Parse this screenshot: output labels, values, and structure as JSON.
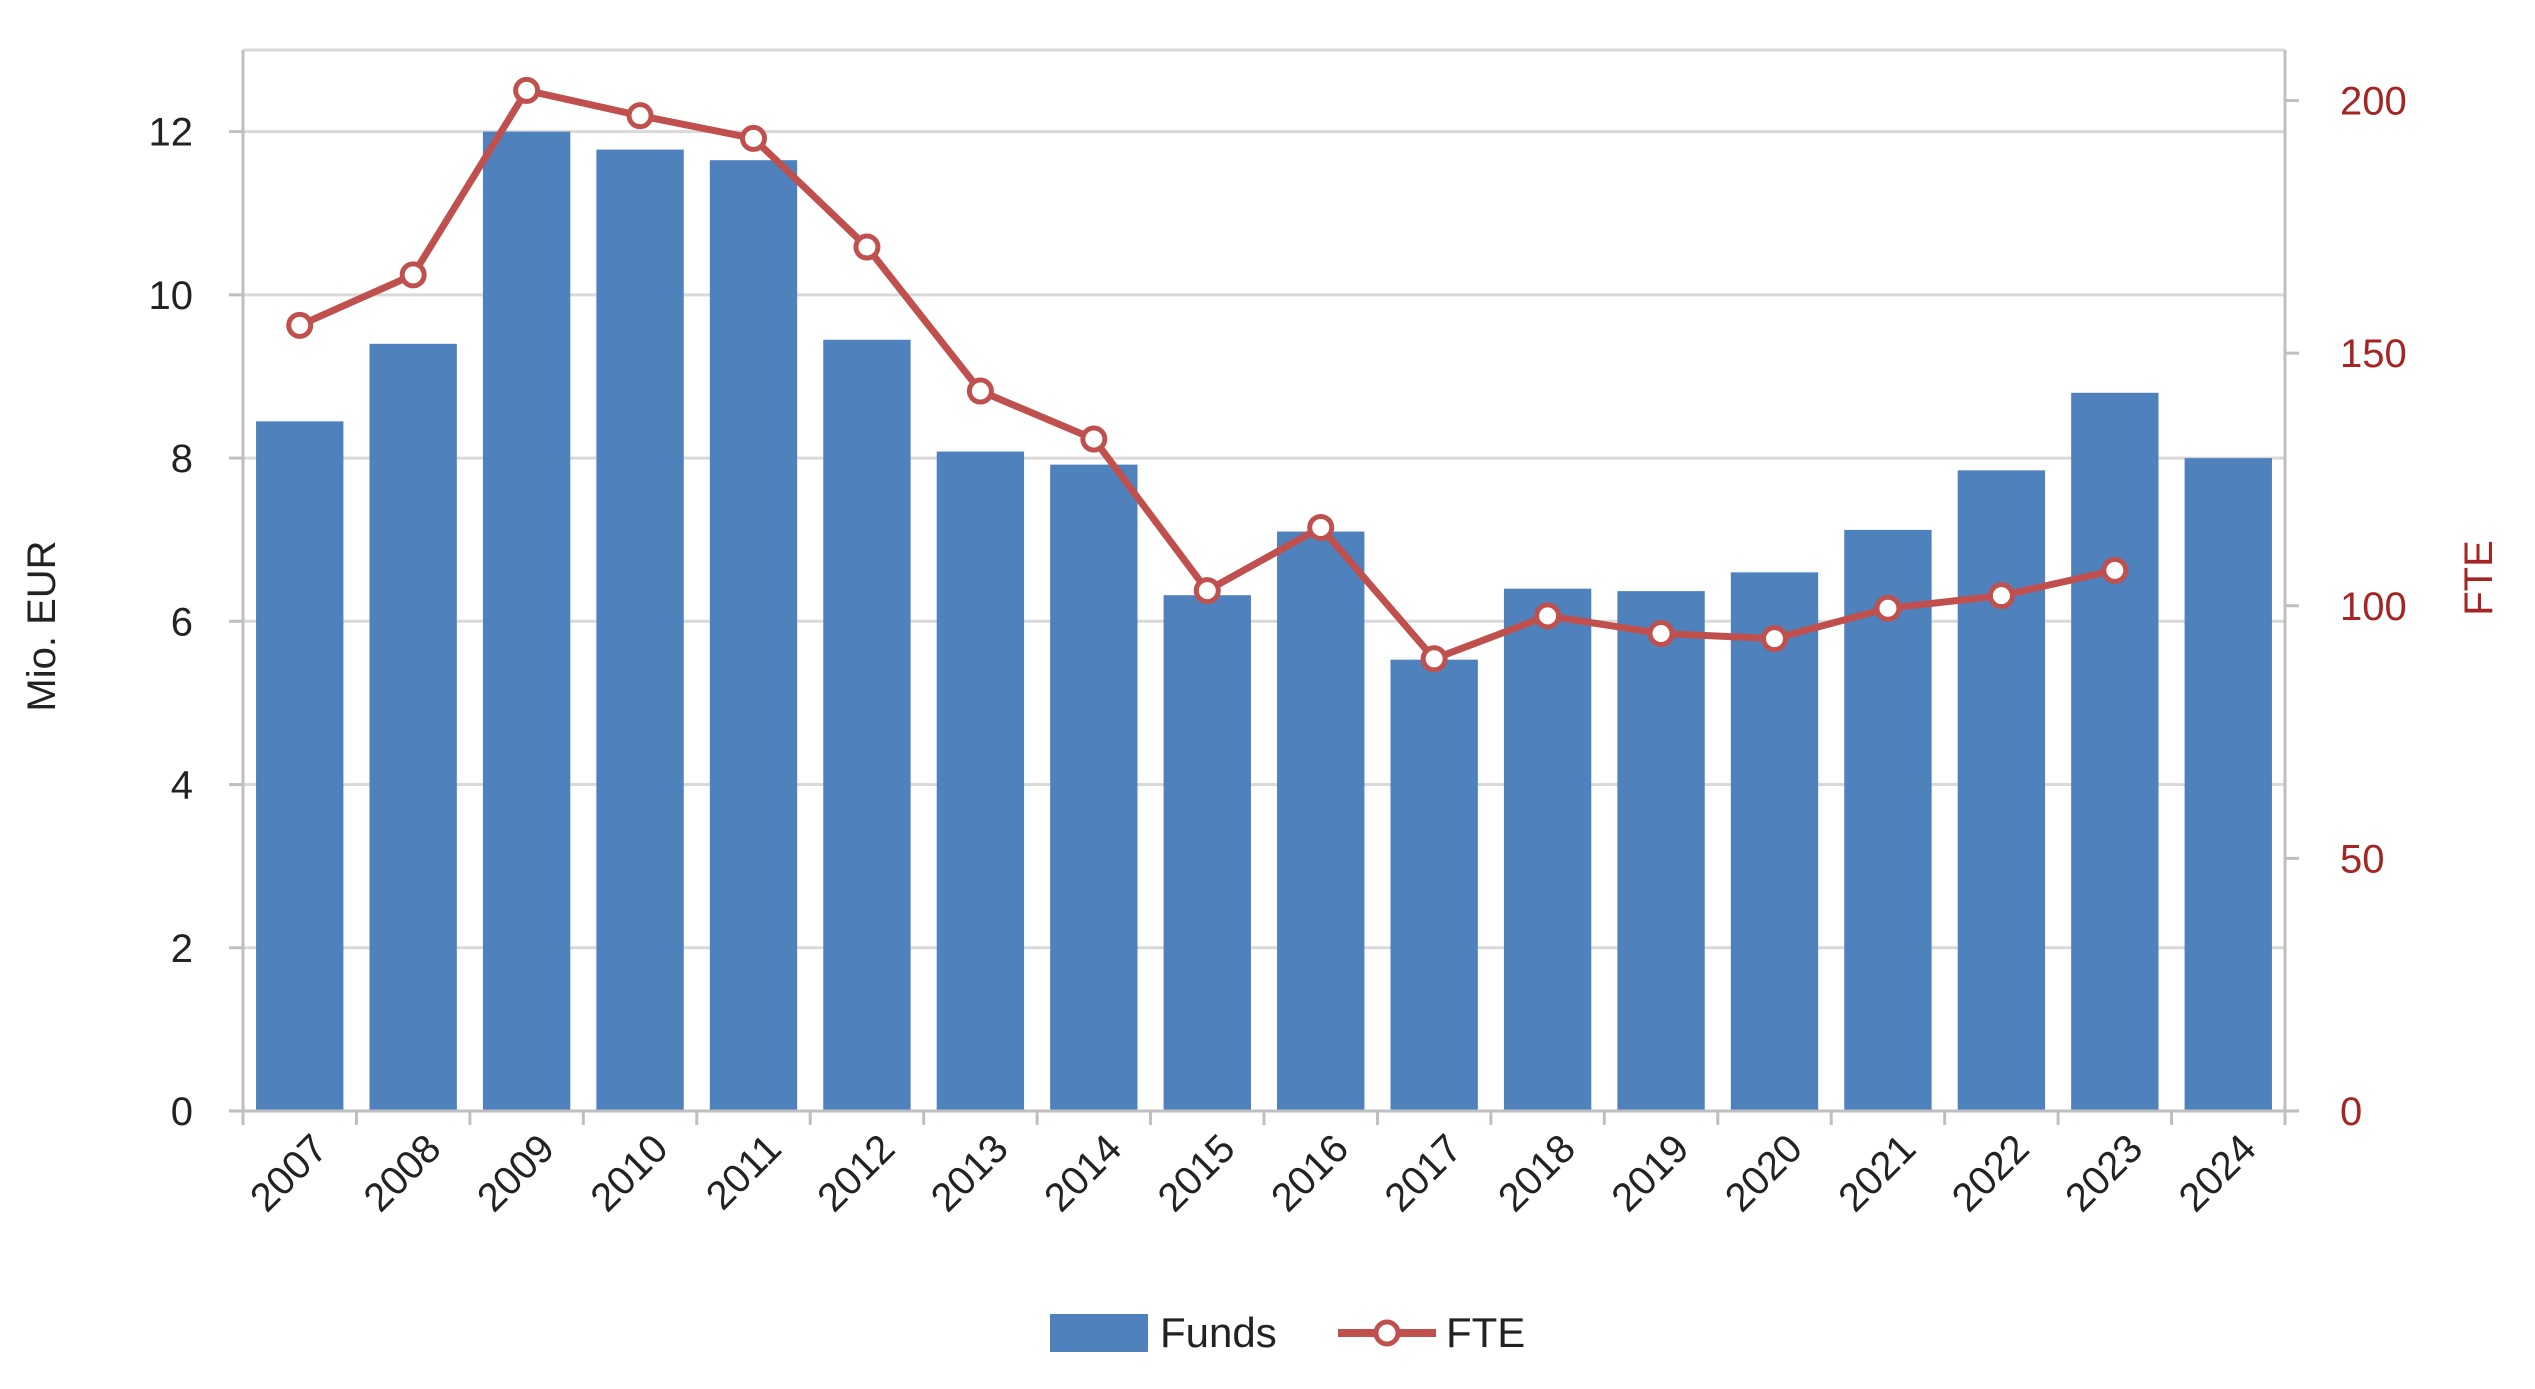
{
  "chart_data": {
    "type": "bar",
    "categories": [
      "2007",
      "2008",
      "2009",
      "2010",
      "2011",
      "2012",
      "2013",
      "2014",
      "2015",
      "2016",
      "2017",
      "2018",
      "2019",
      "2020",
      "2021",
      "2022",
      "2023",
      "2024"
    ],
    "series": [
      {
        "name": "Funds",
        "type": "bar",
        "axis": "left",
        "color": "#4f81bd",
        "values": [
          8.45,
          9.4,
          12.0,
          11.78,
          11.65,
          9.45,
          8.08,
          7.92,
          6.32,
          7.1,
          5.53,
          6.4,
          6.37,
          6.6,
          7.12,
          7.85,
          8.8,
          8.0
        ]
      },
      {
        "name": "FTE",
        "type": "line",
        "axis": "right",
        "color": "#c0504d",
        "marker": "open-circle",
        "values": [
          155.5,
          165.5,
          202.0,
          197.0,
          192.5,
          171.0,
          142.5,
          133.0,
          103.0,
          115.5,
          89.5,
          98.0,
          94.5,
          93.5,
          99.5,
          102.0,
          107.0,
          null
        ]
      }
    ],
    "y_left": {
      "label": "Mio. EUR",
      "ylim": [
        0,
        13
      ],
      "ticks": [
        0,
        2,
        4,
        6,
        8,
        10,
        12
      ]
    },
    "y_right": {
      "label": "FTE",
      "ylim": [
        0,
        210
      ],
      "ticks": [
        0,
        50,
        100,
        150,
        200
      ]
    },
    "grid": true,
    "legend": {
      "placement": "bottom-center",
      "entries": [
        {
          "label": "Funds",
          "kind": "bar",
          "color": "#4f81bd"
        },
        {
          "label": "FTE",
          "kind": "line",
          "color": "#c0504d"
        }
      ]
    }
  }
}
